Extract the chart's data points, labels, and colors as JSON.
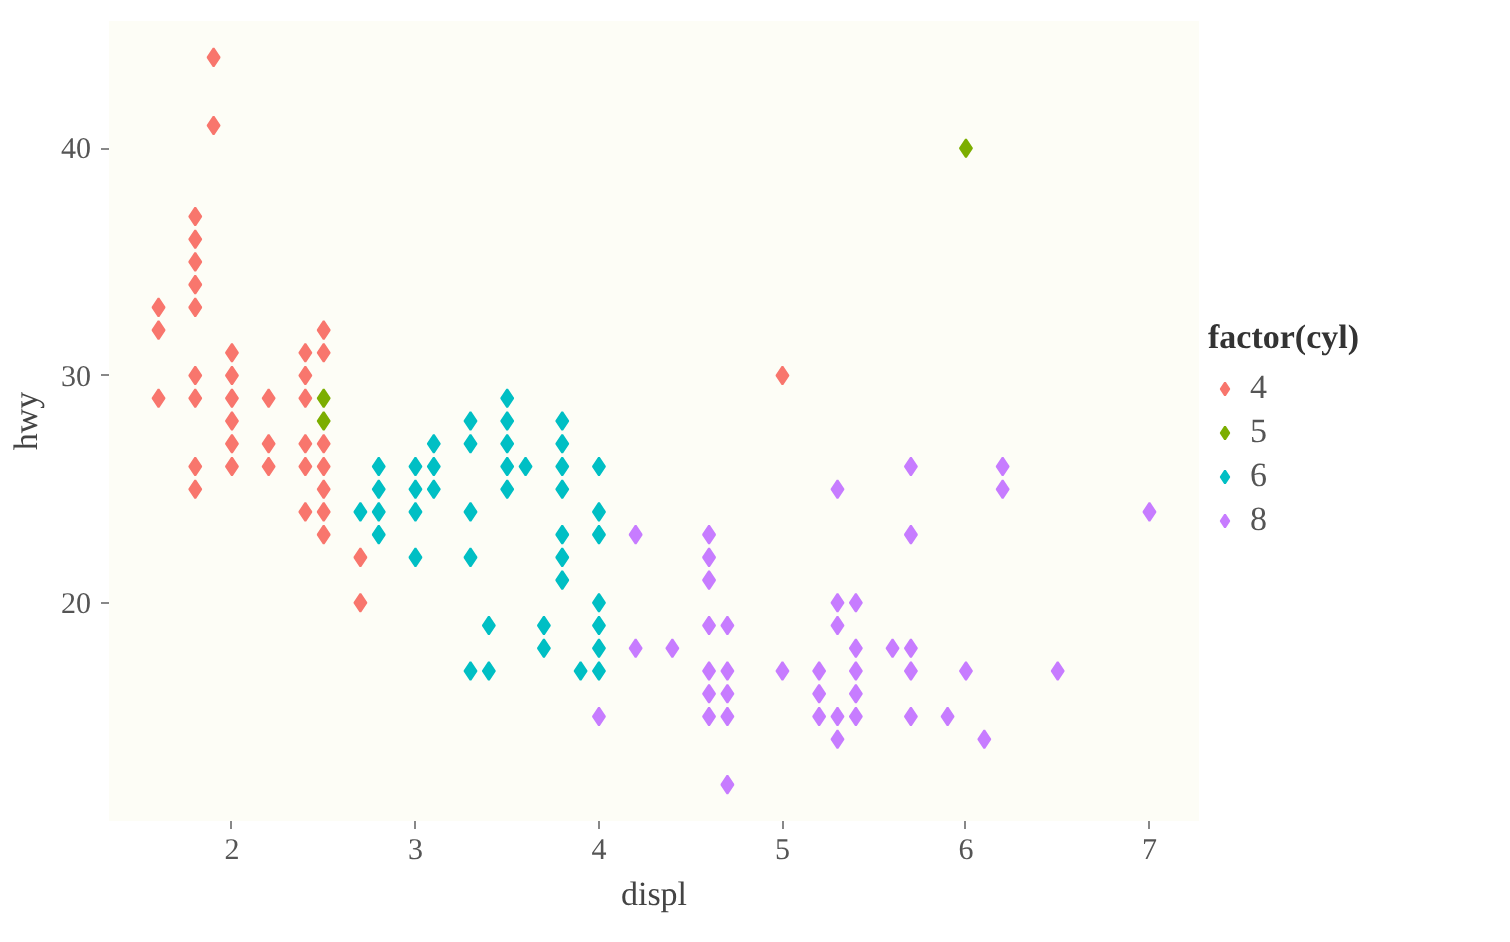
{
  "chart_data": {
    "type": "scatter",
    "xlabel": "displ",
    "ylabel": "hwy",
    "legend_title": "factor(cyl)",
    "legend": "right",
    "grid": false,
    "marker": "diamond",
    "xlim": [
      1.33,
      7.27
    ],
    "ylim": [
      10.4,
      45.6
    ],
    "xticks": [
      2,
      3,
      4,
      5,
      6,
      7
    ],
    "yticks": [
      20,
      30,
      40
    ],
    "series": [
      {
        "name": "4",
        "color": "#f8766d",
        "x": [
          1.6,
          1.6,
          1.6,
          1.8,
          1.8,
          1.8,
          1.8,
          1.8,
          1.8,
          1.8,
          1.8,
          1.8,
          1.9,
          1.9,
          2.0,
          2.0,
          2.0,
          2.0,
          2.0,
          2.0,
          2.2,
          2.2,
          2.2,
          2.4,
          2.4,
          2.4,
          2.4,
          2.4,
          2.4,
          2.5,
          2.5,
          2.5,
          2.5,
          2.5,
          2.5,
          2.5,
          2.7,
          2.7,
          5.0
        ],
        "values": [
          33,
          32,
          29,
          37,
          36,
          35,
          34,
          33,
          30,
          29,
          26,
          25,
          44,
          41,
          31,
          30,
          29,
          28,
          27,
          26,
          29,
          27,
          26,
          31,
          30,
          29,
          27,
          26,
          24,
          32,
          31,
          27,
          26,
          25,
          24,
          23,
          22,
          20,
          30
        ]
      },
      {
        "name": "5",
        "color": "#7cae00",
        "x": [
          2.5,
          2.5,
          6.0
        ],
        "values": [
          29,
          28,
          40
        ]
      },
      {
        "name": "6",
        "color": "#00bfc4",
        "x": [
          2.7,
          2.8,
          2.8,
          2.8,
          2.8,
          3.0,
          3.0,
          3.0,
          3.0,
          3.1,
          3.1,
          3.1,
          3.3,
          3.3,
          3.3,
          3.3,
          3.3,
          3.4,
          3.4,
          3.5,
          3.5,
          3.5,
          3.5,
          3.5,
          3.6,
          3.7,
          3.7,
          3.8,
          3.8,
          3.8,
          3.8,
          3.8,
          3.8,
          3.8,
          3.9,
          4.0,
          4.0,
          4.0,
          4.0,
          4.0,
          4.0,
          4.0
        ],
        "values": [
          24,
          26,
          25,
          24,
          23,
          26,
          25,
          24,
          22,
          27,
          26,
          25,
          28,
          27,
          24,
          22,
          17,
          19,
          17,
          29,
          28,
          27,
          26,
          25,
          26,
          19,
          18,
          28,
          27,
          26,
          25,
          23,
          22,
          21,
          17,
          26,
          24,
          23,
          20,
          19,
          18,
          17
        ]
      },
      {
        "name": "8",
        "color": "#c77cff",
        "x": [
          4.0,
          4.2,
          4.2,
          4.4,
          4.6,
          4.6,
          4.6,
          4.6,
          4.6,
          4.6,
          4.6,
          4.7,
          4.7,
          4.7,
          4.7,
          4.7,
          5.0,
          5.2,
          5.2,
          5.2,
          5.3,
          5.3,
          5.3,
          5.3,
          5.3,
          5.4,
          5.4,
          5.4,
          5.4,
          5.4,
          5.6,
          5.7,
          5.7,
          5.7,
          5.7,
          5.7,
          5.9,
          6.0,
          6.1,
          6.2,
          6.2,
          6.5,
          7.0
        ],
        "values": [
          15,
          23,
          18,
          18,
          23,
          22,
          21,
          19,
          17,
          16,
          15,
          19,
          17,
          16,
          15,
          12,
          17,
          17,
          16,
          15,
          25,
          20,
          19,
          15,
          14,
          20,
          18,
          17,
          16,
          15,
          18,
          26,
          23,
          18,
          17,
          15,
          15,
          17,
          14,
          26,
          25,
          17,
          24
        ]
      }
    ]
  }
}
